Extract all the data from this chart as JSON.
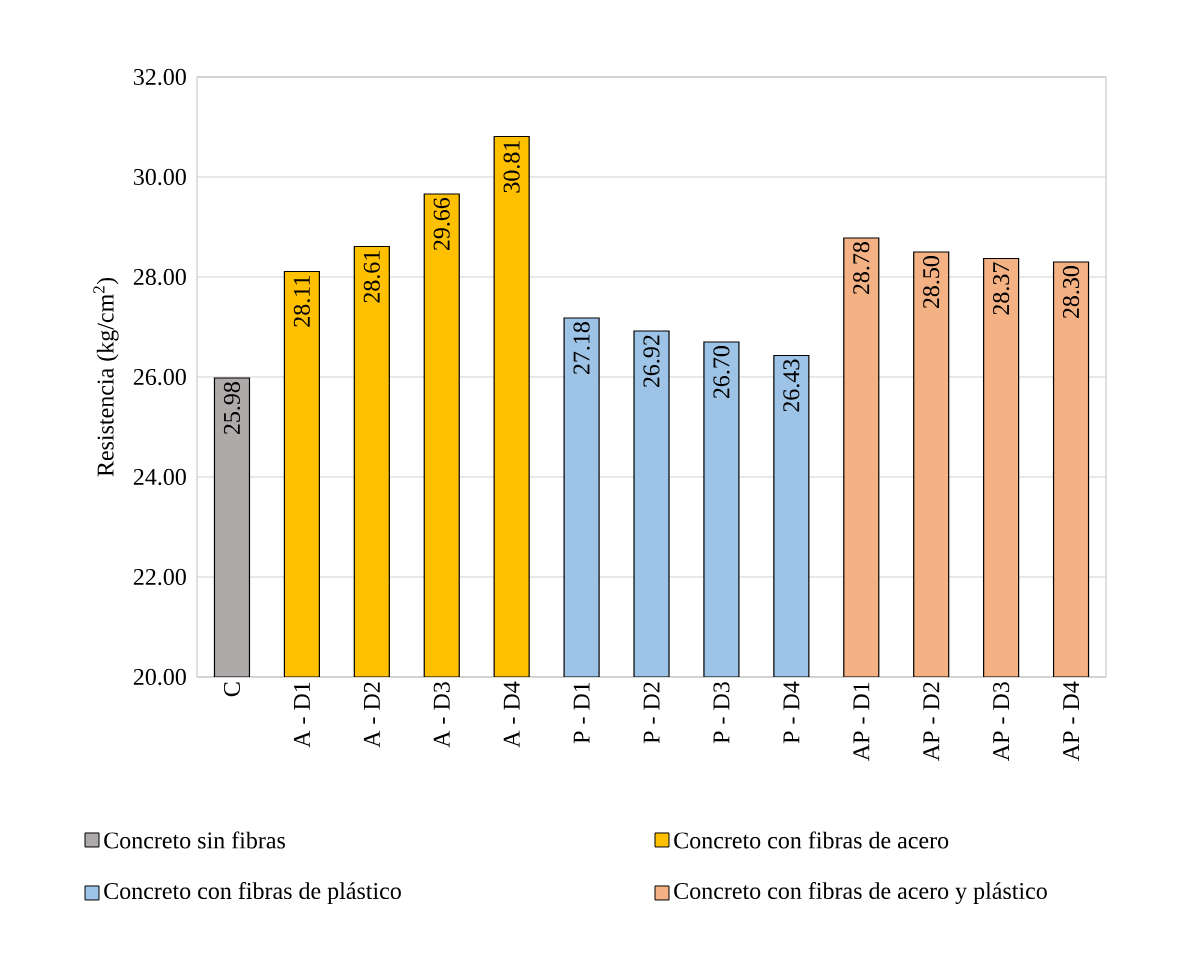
{
  "chart_data": {
    "type": "bar",
    "ylabel": "Resistencia (kg/cm$^{2}$)",
    "categories": [
      "C",
      "A - D1",
      "A - D2",
      "A - D3",
      "A - D4",
      "P - D1",
      "P - D2",
      "P - D3",
      "P - D4",
      "AP - D1",
      "AP - D2",
      "AP - D3",
      "AP - D4"
    ],
    "series": [
      {
        "name": "Concreto sin fibras",
        "color": "#aeaaaa",
        "values": [
          25.98,
          null,
          null,
          null,
          null,
          null,
          null,
          null,
          null,
          null,
          null,
          null,
          null
        ],
        "value_labels": [
          "25.98",
          null,
          null,
          null,
          null,
          null,
          null,
          null,
          null,
          null,
          null,
          null,
          null
        ]
      },
      {
        "name": "Concreto con fibras de acero",
        "color": "#ffc000",
        "values": [
          null,
          28.11,
          28.61,
          29.66,
          30.81,
          null,
          null,
          null,
          null,
          null,
          null,
          null,
          null
        ],
        "value_labels": [
          null,
          "28.11",
          "28.61",
          "29.66",
          "30.81",
          null,
          null,
          null,
          null,
          null,
          null,
          null,
          null
        ]
      },
      {
        "name": "Concreto con fibras de plástico",
        "color": "#9dc3e6",
        "values": [
          null,
          null,
          null,
          null,
          null,
          27.18,
          26.92,
          26.7,
          26.43,
          null,
          null,
          null,
          null
        ],
        "value_labels": [
          null,
          null,
          null,
          null,
          null,
          "27.18",
          "26.92",
          "26.70",
          "26.43",
          null,
          null,
          null,
          null
        ]
      },
      {
        "name": "Concreto con fibras de acero y plástico",
        "color": "#f4b183",
        "values": [
          null,
          null,
          null,
          null,
          null,
          null,
          null,
          null,
          null,
          28.78,
          28.5,
          28.37,
          28.3
        ],
        "value_labels": [
          null,
          null,
          null,
          null,
          null,
          null,
          null,
          null,
          null,
          "28.78",
          "28.50",
          "28.37",
          "28.30"
        ]
      }
    ],
    "ylim": [
      20,
      32
    ],
    "yticks": [
      {
        "value": 20,
        "label": "20.00"
      },
      {
        "value": 22,
        "label": "22.00"
      },
      {
        "value": 24,
        "label": "24.00"
      },
      {
        "value": 26,
        "label": "26.00"
      },
      {
        "value": 28,
        "label": "28.00"
      },
      {
        "value": 30,
        "label": "30.00"
      },
      {
        "value": 32,
        "label": "32.00"
      }
    ],
    "grid": "y",
    "legend": "bottom"
  }
}
